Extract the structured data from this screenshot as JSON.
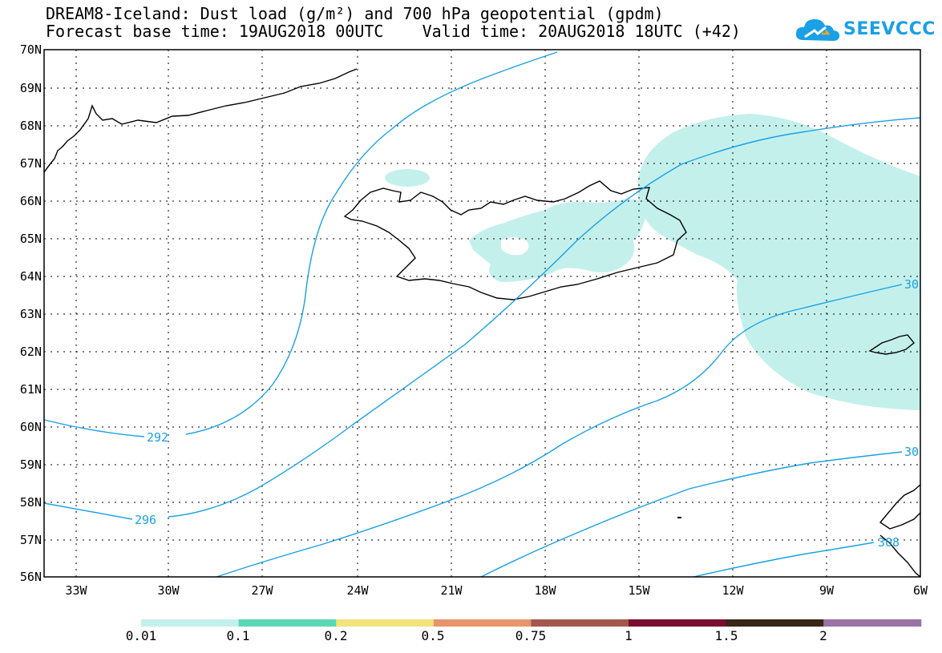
{
  "header": {
    "title_line1": "DREAM8-Iceland: Dust load (g/m²) and 700 hPa geopotential (gpdm)",
    "title_line2": "Forecast base time: 19AUG2018 00UTC    Valid time: 20AUG2018 18UTC (+42)",
    "logo_text": "SEEVCCC"
  },
  "axes": {
    "lat_labels": [
      "70N",
      "69N",
      "68N",
      "67N",
      "66N",
      "65N",
      "64N",
      "63N",
      "62N",
      "61N",
      "60N",
      "59N",
      "58N",
      "57N",
      "56N"
    ],
    "lon_labels": [
      "33W",
      "30W",
      "27W",
      "24W",
      "21W",
      "18W",
      "15W",
      "12W",
      "9W",
      "6W"
    ]
  },
  "contours": {
    "labels": [
      "292",
      "296",
      "30",
      "30",
      "308"
    ]
  },
  "legend": {
    "labels": [
      "0.01",
      "0.1",
      "0.2",
      "0.5",
      "0.75",
      "1",
      "1.5",
      "2"
    ],
    "colors": [
      "#c4f0ec",
      "#5ad8b4",
      "#f3e37a",
      "#e8946e",
      "#a4584c",
      "#7a0e2e",
      "#3a2616",
      "#9a72a6"
    ]
  },
  "colors": {
    "contour": "#1aa0e6",
    "dust_low": "#c4f0ec"
  }
}
